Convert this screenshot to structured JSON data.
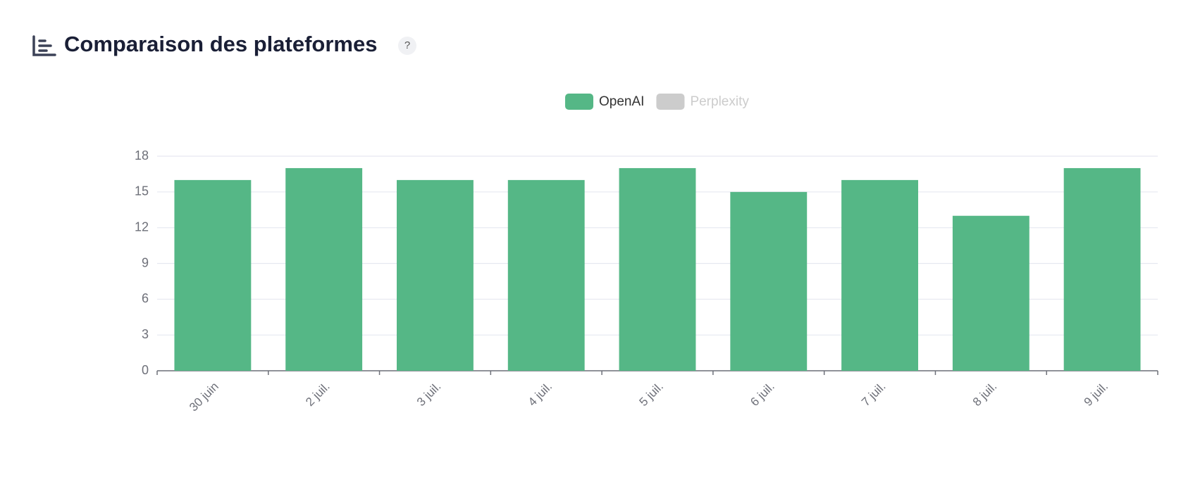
{
  "chart_data": {
    "type": "bar",
    "title": "Comparaison des plateformes",
    "help": "?",
    "categories": [
      "30 juin",
      "2 juil.",
      "3 juil.",
      "4 juil.",
      "5 juil.",
      "6 juil.",
      "7 juil.",
      "8 juil.",
      "9 juil."
    ],
    "series": [
      {
        "name": "OpenAI",
        "color": "#55b786",
        "values": [
          16,
          17,
          16,
          16,
          17,
          15,
          16,
          13,
          17
        ]
      },
      {
        "name": "Perplexity",
        "color": "#cccccc",
        "hidden": true,
        "values": [
          null,
          null,
          null,
          null,
          null,
          null,
          null,
          null,
          null
        ]
      }
    ],
    "ylim": [
      0,
      18
    ],
    "yticks": [
      0,
      3,
      6,
      9,
      12,
      15,
      18
    ],
    "grid": true,
    "legend": "top"
  }
}
